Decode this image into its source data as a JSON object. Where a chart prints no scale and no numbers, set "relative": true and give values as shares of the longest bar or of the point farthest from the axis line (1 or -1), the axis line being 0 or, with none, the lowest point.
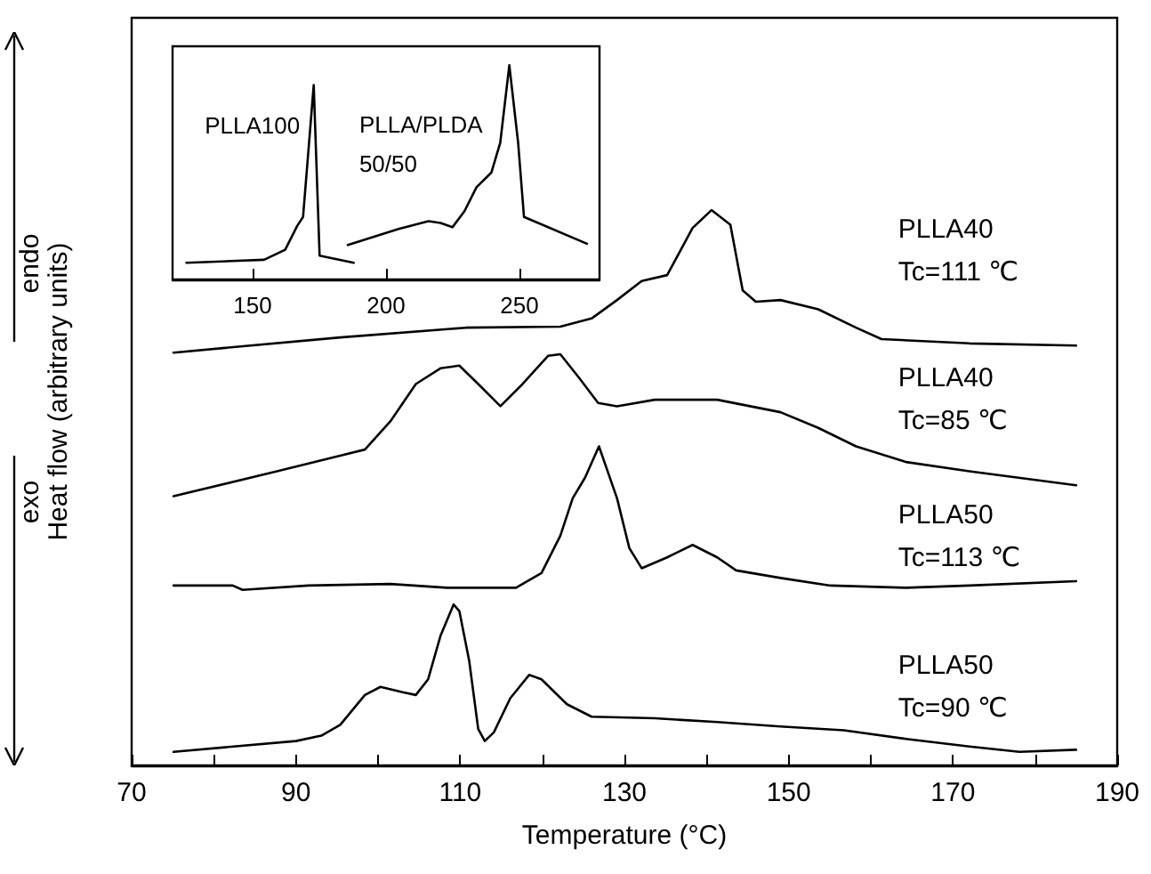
{
  "chart_data": [
    {
      "type": "line",
      "xlabel": "Temperature (°C)",
      "ylabel": "Heat flow (arbitrary units)",
      "annotations": [
        "endo",
        "exo"
      ],
      "relative": true,
      "legend": false,
      "marker": "none",
      "line_style": "solid",
      "xlim": [
        70,
        190
      ],
      "xticks": [
        70,
        {
          "value": 80,
          "label": null
        },
        90,
        {
          "value": 100,
          "label": null
        },
        110,
        {
          "value": 120,
          "label": null
        },
        130,
        {
          "value": 140,
          "label": null
        },
        150,
        {
          "value": 160,
          "label": null
        },
        170,
        {
          "value": 180,
          "label": null
        },
        190
      ],
      "series": [
        {
          "name": "PLLA40\nTc=111 ℃",
          "color": "#000000",
          "x": [
            75.1,
            95.4,
            110.7,
            122.2,
            126.0,
            129.1,
            132.1,
            135.2,
            138.3,
            140.6,
            142.9,
            144.4,
            146.0,
            149.0,
            153.6,
            158.2,
            161.3,
            172.0,
            185.0
          ],
          "values": [
            0.737,
            0.765,
            0.783,
            0.785,
            0.8,
            0.834,
            0.869,
            0.88,
            0.967,
            1,
            0.973,
            0.852,
            0.831,
            0.834,
            0.817,
            0.783,
            0.762,
            0.754,
            0.75
          ]
        },
        {
          "name": "PLLA40\nTc=85 ℃",
          "color": "#000000",
          "x": [
            75.1,
            87.7,
            98.4,
            101.5,
            104.6,
            107.6,
            109.9,
            112.2,
            114.9,
            117.6,
            120.7,
            122.2,
            124.5,
            126.8,
            129.1,
            133.7,
            141.3,
            149.0,
            153.6,
            158.2,
            164.3,
            172.0,
            185.0
          ],
          "values": [
            0.472,
            0.518,
            0.558,
            0.61,
            0.679,
            0.708,
            0.713,
            0.679,
            0.638,
            0.679,
            0.731,
            0.734,
            0.69,
            0.644,
            0.638,
            0.65,
            0.65,
            0.627,
            0.598,
            0.564,
            0.535,
            0.518,
            0.492
          ]
        },
        {
          "name": "PLLA50\nTc=113 ℃",
          "color": "#000000",
          "x": [
            75.1,
            82.3,
            83.5,
            91.5,
            101.5,
            108.4,
            116.8,
            119.9,
            122.2,
            123.7,
            125.2,
            126.9,
            129.1,
            130.6,
            132.1,
            135.2,
            138.3,
            141.3,
            143.6,
            149.0,
            155.1,
            164.3,
            172.0,
            185.0
          ],
          "values": [
            0.307,
            0.307,
            0.299,
            0.307,
            0.31,
            0.303,
            0.303,
            0.33,
            0.399,
            0.468,
            0.506,
            0.564,
            0.468,
            0.376,
            0.339,
            0.359,
            0.382,
            0.359,
            0.335,
            0.321,
            0.307,
            0.303,
            0.307,
            0.315
          ]
        },
        {
          "name": "PLLA50\nTc=90 ℃",
          "color": "#000000",
          "x": [
            75.1,
            90.0,
            93.1,
            95.4,
            98.4,
            100.3,
            103.0,
            104.6,
            106.1,
            107.6,
            109.2,
            109.9,
            111.1,
            112.2,
            113.0,
            114.1,
            116.1,
            118.4,
            119.9,
            123.0,
            126.0,
            133.7,
            141.3,
            149.0,
            156.7,
            164.3,
            172.0,
            178.1,
            185.0
          ],
          "values": [
            0.0,
            0.02,
            0.03,
            0.05,
            0.105,
            0.12,
            0.11,
            0.105,
            0.134,
            0.214,
            0.272,
            0.26,
            0.168,
            0.042,
            0.02,
            0.036,
            0.099,
            0.142,
            0.134,
            0.088,
            0.065,
            0.062,
            0.055,
            0.047,
            0.04,
            0.024,
            0.01,
            0.0,
            0.004
          ]
        }
      ]
    },
    {
      "type": "line",
      "relative": true,
      "legend": false,
      "marker": "none",
      "line_style": "solid",
      "tick_labels": "x",
      "xlim": [
        120,
        280
      ],
      "xticks": [
        150,
        200,
        250
      ],
      "series": [
        {
          "name": "PLLA100",
          "color": "#000000",
          "x": [
            125.2,
            154.3,
            162.2,
            166.7,
            168.9,
            172.9,
            175.1,
            187.9
          ],
          "values": [
            0.078,
            0.092,
            0.139,
            0.25,
            0.292,
            0.908,
            0.111,
            0.078
          ]
        },
        {
          "name": "PLLA/PLDA\n50/50",
          "color": "#000000",
          "x": [
            185.7,
            204.7,
            215.9,
            220.4,
            224.9,
            229.4,
            233.9,
            239.5,
            242.8,
            246.2,
            249.5,
            251.7,
            275.3
          ],
          "values": [
            0.161,
            0.236,
            0.272,
            0.264,
            0.244,
            0.319,
            0.431,
            0.5,
            0.639,
            1,
            0.639,
            0.292,
            0.167
          ]
        }
      ]
    }
  ]
}
